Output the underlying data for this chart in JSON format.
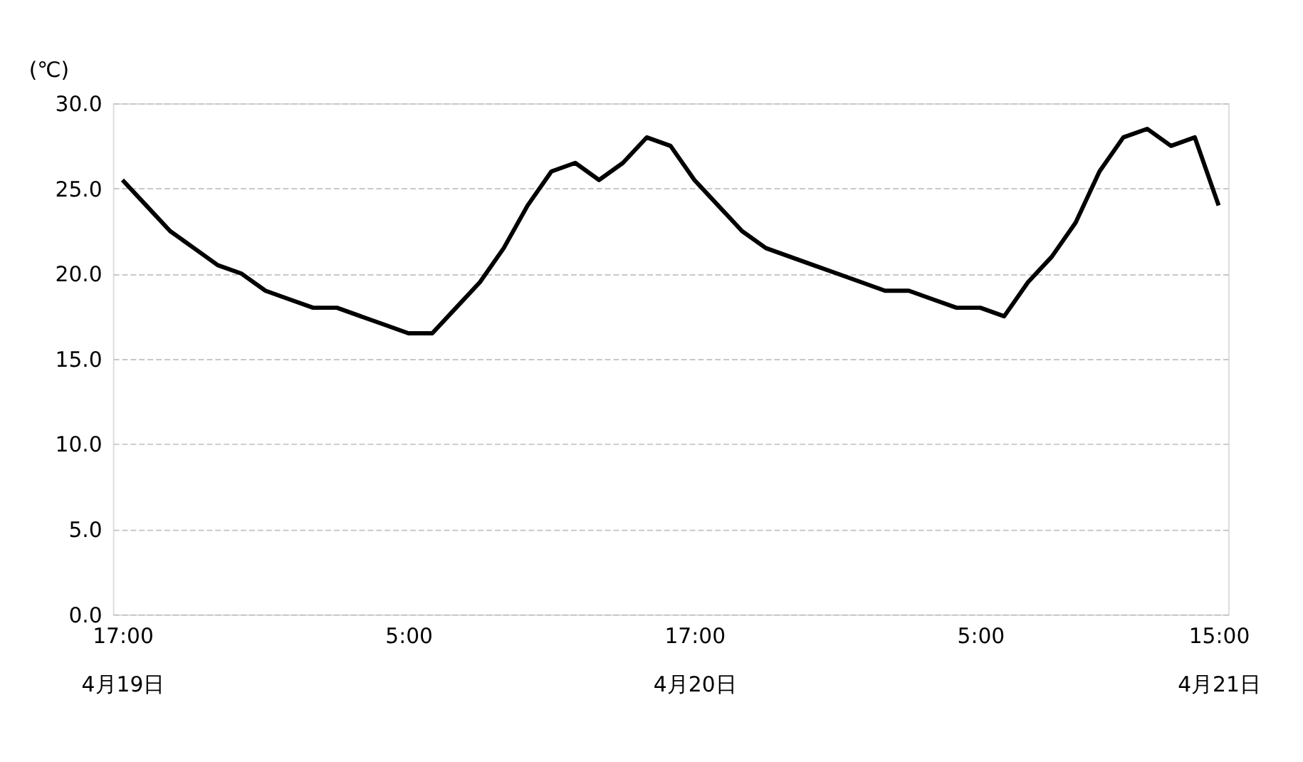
{
  "chart_data": {
    "type": "line",
    "ylabel": "(℃)",
    "categories": [
      "17:00\n4月19日",
      null,
      null,
      null,
      null,
      null,
      null,
      null,
      null,
      null,
      null,
      null,
      "5:00",
      null,
      null,
      null,
      null,
      null,
      null,
      null,
      null,
      null,
      null,
      null,
      "17:00\n4月20日",
      null,
      null,
      null,
      null,
      null,
      null,
      null,
      null,
      null,
      null,
      null,
      "5:00",
      null,
      null,
      null,
      null,
      null,
      null,
      null,
      null,
      null,
      "15:00\n4月21日"
    ],
    "series": [
      {
        "color": "#000000",
        "values": [
          25.5,
          24.0,
          22.5,
          21.5,
          20.5,
          20.0,
          19.0,
          18.5,
          18.0,
          18.0,
          17.5,
          17.0,
          16.5,
          16.5,
          18.0,
          19.5,
          21.5,
          24.0,
          26.0,
          26.5,
          25.5,
          26.5,
          28.0,
          27.5,
          25.5,
          24.0,
          22.5,
          21.5,
          21.0,
          20.5,
          20.0,
          19.5,
          19.0,
          19.0,
          18.5,
          18.0,
          18.0,
          17.5,
          19.5,
          21.0,
          23.0,
          26.0,
          28.0,
          28.5,
          27.5,
          28.0,
          24.0
        ]
      }
    ],
    "ylim": [
      0,
      30
    ],
    "yticks": [
      {
        "value": 0,
        "label": "0.0"
      },
      {
        "value": 5,
        "label": "5.0"
      },
      {
        "value": 10,
        "label": "10.0"
      },
      {
        "value": 15,
        "label": "15.0"
      },
      {
        "value": 20,
        "label": "20.0"
      },
      {
        "value": 25,
        "label": "25.0"
      },
      {
        "value": 30,
        "label": "30.0"
      }
    ],
    "grid": "y",
    "marker": "none",
    "line_style": "solid",
    "legend": false
  }
}
